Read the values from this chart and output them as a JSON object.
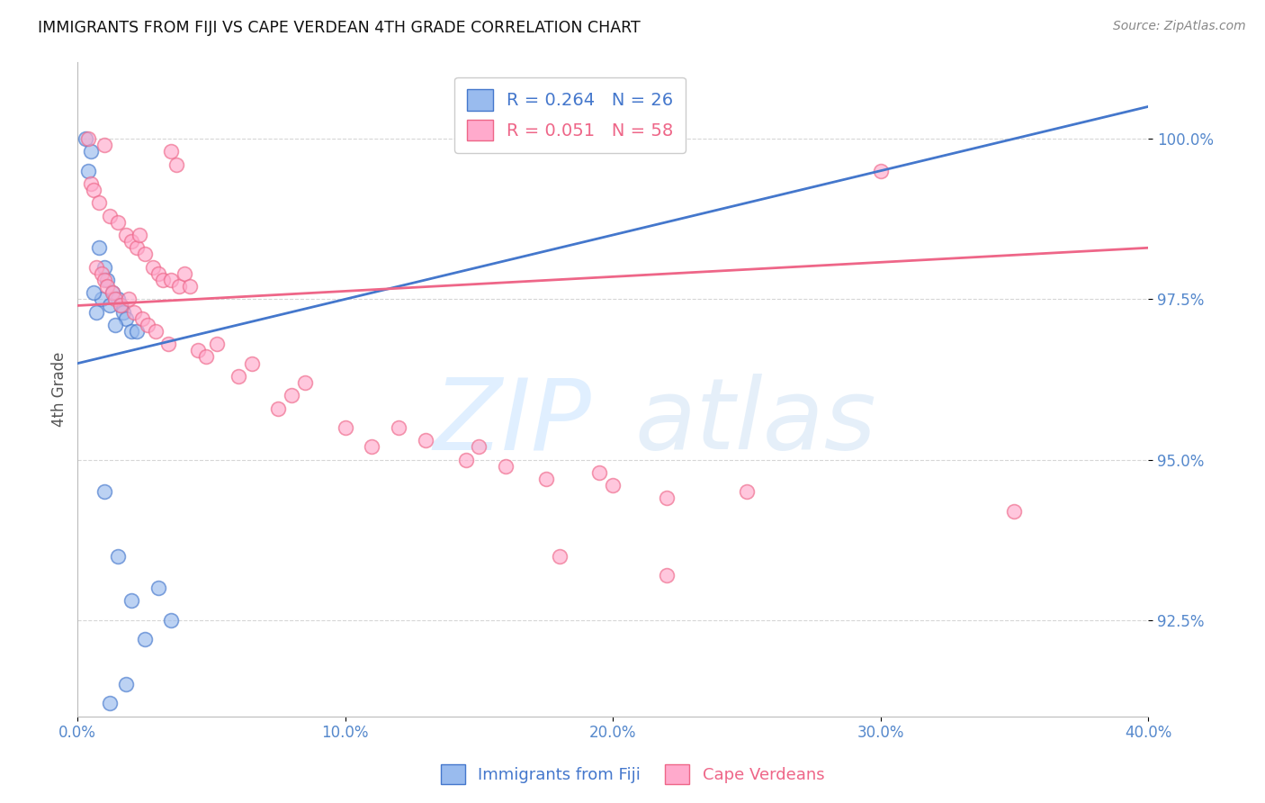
{
  "title": "IMMIGRANTS FROM FIJI VS CAPE VERDEAN 4TH GRADE CORRELATION CHART",
  "source": "Source: ZipAtlas.com",
  "ylabel": "4th Grade",
  "legend_label_blue": "Immigrants from Fiji",
  "legend_label_pink": "Cape Verdeans",
  "r_blue": 0.264,
  "n_blue": 26,
  "r_pink": 0.051,
  "n_pink": 58,
  "x_min": 0.0,
  "x_max": 40.0,
  "y_min": 91.0,
  "y_max": 101.2,
  "y_ticks": [
    92.5,
    95.0,
    97.5,
    100.0
  ],
  "x_ticks": [
    0.0,
    10.0,
    20.0,
    30.0,
    40.0
  ],
  "blue_color": "#99bbee",
  "pink_color": "#ffaacc",
  "blue_line_color": "#4477cc",
  "pink_line_color": "#ee6688",
  "blue_points": [
    [
      0.3,
      100.0
    ],
    [
      0.5,
      99.8
    ],
    [
      0.4,
      99.5
    ],
    [
      0.8,
      98.3
    ],
    [
      1.0,
      98.0
    ],
    [
      1.1,
      97.8
    ],
    [
      1.3,
      97.6
    ],
    [
      1.5,
      97.5
    ],
    [
      1.6,
      97.4
    ],
    [
      1.7,
      97.3
    ],
    [
      1.8,
      97.2
    ],
    [
      2.0,
      97.0
    ],
    [
      0.9,
      97.5
    ],
    [
      1.2,
      97.4
    ],
    [
      0.6,
      97.6
    ],
    [
      0.7,
      97.3
    ],
    [
      1.4,
      97.1
    ],
    [
      2.2,
      97.0
    ],
    [
      1.0,
      94.5
    ],
    [
      1.5,
      93.5
    ],
    [
      2.0,
      92.8
    ],
    [
      2.5,
      92.2
    ],
    [
      3.0,
      93.0
    ],
    [
      3.5,
      92.5
    ],
    [
      1.8,
      91.5
    ],
    [
      1.2,
      91.2
    ]
  ],
  "pink_points": [
    [
      0.4,
      100.0
    ],
    [
      1.0,
      99.9
    ],
    [
      3.5,
      99.8
    ],
    [
      3.7,
      99.6
    ],
    [
      0.5,
      99.3
    ],
    [
      0.6,
      99.2
    ],
    [
      0.8,
      99.0
    ],
    [
      1.2,
      98.8
    ],
    [
      1.5,
      98.7
    ],
    [
      1.8,
      98.5
    ],
    [
      2.0,
      98.4
    ],
    [
      2.2,
      98.3
    ],
    [
      2.3,
      98.5
    ],
    [
      2.5,
      98.2
    ],
    [
      2.8,
      98.0
    ],
    [
      3.0,
      97.9
    ],
    [
      3.2,
      97.8
    ],
    [
      3.5,
      97.8
    ],
    [
      3.8,
      97.7
    ],
    [
      4.0,
      97.9
    ],
    [
      4.2,
      97.7
    ],
    [
      0.7,
      98.0
    ],
    [
      0.9,
      97.9
    ],
    [
      1.0,
      97.8
    ],
    [
      1.1,
      97.7
    ],
    [
      1.3,
      97.6
    ],
    [
      1.4,
      97.5
    ],
    [
      1.6,
      97.4
    ],
    [
      1.9,
      97.5
    ],
    [
      2.1,
      97.3
    ],
    [
      2.4,
      97.2
    ],
    [
      2.6,
      97.1
    ],
    [
      2.9,
      97.0
    ],
    [
      3.4,
      96.8
    ],
    [
      4.5,
      96.7
    ],
    [
      4.8,
      96.6
    ],
    [
      5.2,
      96.8
    ],
    [
      6.5,
      96.5
    ],
    [
      7.5,
      95.8
    ],
    [
      8.0,
      96.0
    ],
    [
      8.5,
      96.2
    ],
    [
      10.0,
      95.5
    ],
    [
      11.0,
      95.2
    ],
    [
      12.0,
      95.5
    ],
    [
      13.0,
      95.3
    ],
    [
      14.5,
      95.0
    ],
    [
      15.0,
      95.2
    ],
    [
      16.0,
      94.9
    ],
    [
      17.5,
      94.7
    ],
    [
      19.5,
      94.8
    ],
    [
      20.0,
      94.6
    ],
    [
      22.0,
      94.4
    ],
    [
      25.0,
      94.5
    ],
    [
      30.0,
      99.5
    ],
    [
      35.0,
      94.2
    ],
    [
      18.0,
      93.5
    ],
    [
      22.0,
      93.2
    ],
    [
      6.0,
      96.3
    ]
  ],
  "blue_trendline": [
    0.0,
    40.0,
    96.5,
    100.5
  ],
  "pink_trendline": [
    0.0,
    40.0,
    97.4,
    98.3
  ],
  "watermark_zip": "ZIP",
  "watermark_atlas": "atlas",
  "background_color": "#ffffff",
  "grid_color": "#cccccc"
}
